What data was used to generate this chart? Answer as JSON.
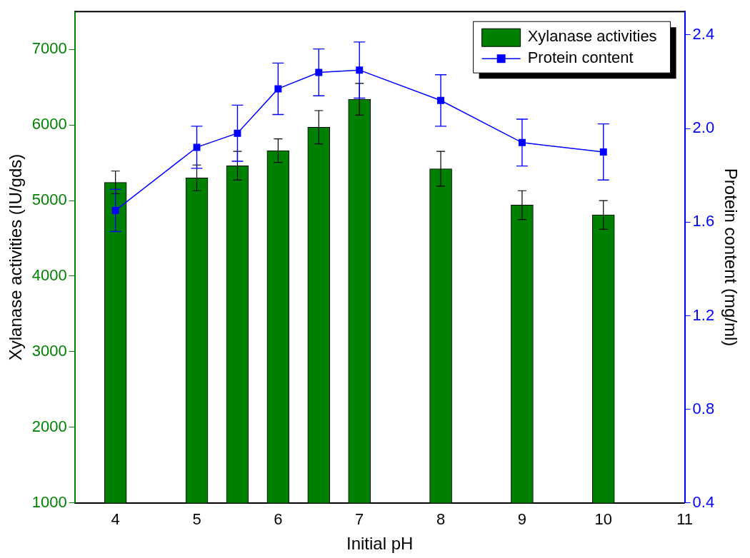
{
  "chart_data": {
    "type": "bar",
    "xlabel": "Initial pH",
    "ylabel": "Xylanase activities (IU/gds)",
    "y2label": "Protein content (mg/ml)",
    "x": [
      4,
      5,
      5.5,
      6,
      6.5,
      7,
      8,
      9,
      10
    ],
    "series": [
      {
        "name": "Xylanase activities",
        "color": "#008000",
        "values": [
          5240,
          5300,
          5460,
          5660,
          5970,
          6340,
          5420,
          4940,
          4810
        ],
        "errors": [
          150,
          170,
          190,
          155,
          220,
          210,
          230,
          190,
          190
        ]
      },
      {
        "name": "Protein content",
        "type": "line",
        "axis": "y2",
        "color": "#0000ff",
        "marker": "square",
        "values": [
          1.65,
          1.92,
          1.98,
          2.17,
          2.24,
          2.25,
          2.12,
          1.94,
          1.9
        ],
        "errors": [
          0.09,
          0.09,
          0.12,
          0.11,
          0.1,
          0.12,
          0.11,
          0.1,
          0.12
        ]
      }
    ],
    "xlim": [
      3.5,
      11
    ],
    "xticks": [
      4,
      5,
      6,
      7,
      8,
      9,
      10,
      11
    ],
    "ylim": [
      1000,
      7500
    ],
    "yticks": [
      1000,
      2000,
      3000,
      4000,
      5000,
      6000,
      7000
    ],
    "y2lim": [
      0.4,
      2.5
    ],
    "y2ticks": [
      {
        "value": 0.4,
        "label": "0.4"
      },
      {
        "value": 0.8,
        "label": "0.8"
      },
      {
        "value": 1.2,
        "label": "1.2"
      },
      {
        "value": 1.6,
        "label": "1.6"
      },
      {
        "value": 2.0,
        "label": "2.0"
      },
      {
        "value": 2.4,
        "label": "2.4"
      }
    ],
    "legend": "top right",
    "grid": false
  }
}
